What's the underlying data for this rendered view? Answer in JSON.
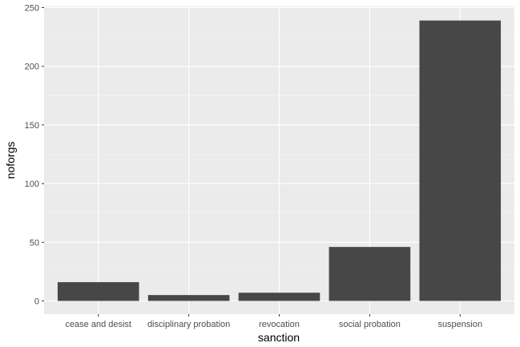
{
  "chart_data": {
    "type": "bar",
    "categories": [
      "cease and desist",
      "disciplinary probation",
      "revocation",
      "social probation",
      "suspension"
    ],
    "values": [
      16,
      5,
      7,
      46,
      239
    ],
    "xlabel": "sanction",
    "ylabel": "noforgs",
    "ylim": [
      0,
      250
    ],
    "yticks": [
      0,
      50,
      100,
      150,
      200,
      250
    ],
    "grid": true,
    "colors": {
      "panel": "#ebebeb",
      "bar": "#474747",
      "grid_major": "#ffffff",
      "grid_minor": "#f5f5f5",
      "tick_text": "#4d4d4d"
    }
  }
}
